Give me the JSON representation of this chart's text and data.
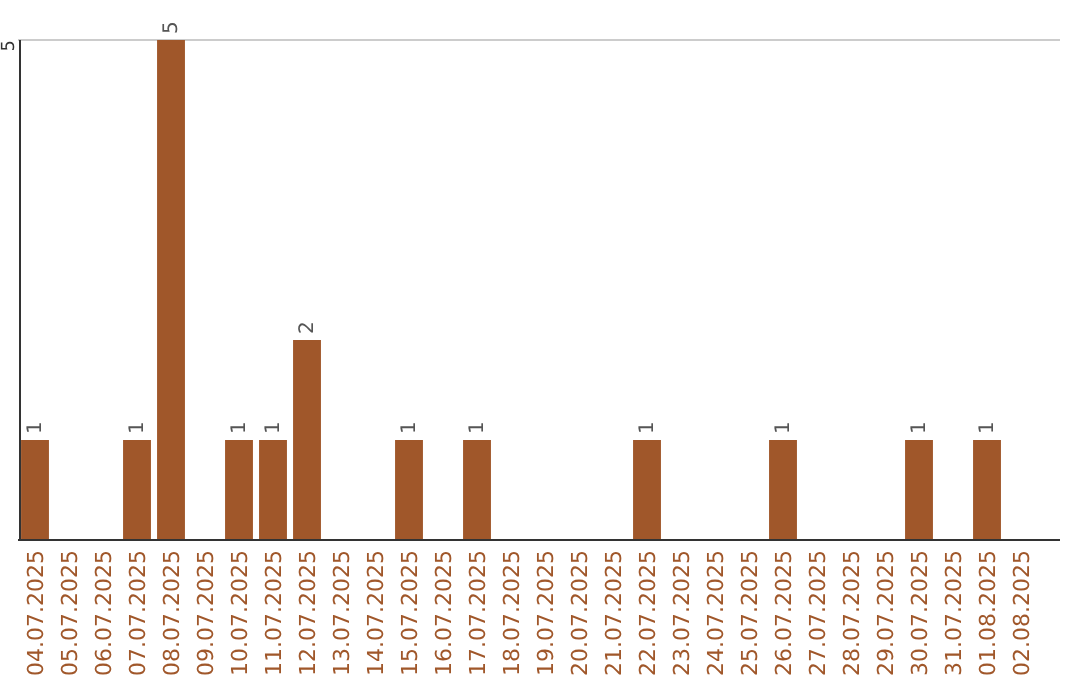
{
  "chart_data": {
    "type": "bar",
    "categories": [
      "04.07.2025",
      "05.07.2025",
      "06.07.2025",
      "07.07.2025",
      "08.07.2025",
      "09.07.2025",
      "10.07.2025",
      "11.07.2025",
      "12.07.2025",
      "13.07.2025",
      "14.07.2025",
      "15.07.2025",
      "16.07.2025",
      "17.07.2025",
      "18.07.2025",
      "19.07.2025",
      "20.07.2025",
      "21.07.2025",
      "22.07.2025",
      "23.07.2025",
      "24.07.2025",
      "25.07.2025",
      "26.07.2025",
      "27.07.2025",
      "28.07.2025",
      "29.07.2025",
      "30.07.2025",
      "31.07.2025",
      "01.08.2025",
      "02.08.2025"
    ],
    "values": [
      1,
      0,
      0,
      1,
      5,
      0,
      1,
      1,
      2,
      0,
      0,
      1,
      0,
      1,
      0,
      0,
      0,
      0,
      1,
      0,
      0,
      0,
      1,
      0,
      0,
      0,
      1,
      0,
      1,
      0
    ],
    "value_labels": [
      "1",
      null,
      null,
      "1",
      "5",
      null,
      "1",
      "1",
      "2",
      null,
      null,
      "1",
      null,
      "1",
      null,
      null,
      null,
      null,
      "1",
      null,
      null,
      null,
      "1",
      null,
      null,
      null,
      "1",
      null,
      "1",
      null
    ],
    "color": "#a0572a",
    "ylim": [
      0,
      5
    ],
    "yticks": [
      5
    ]
  }
}
